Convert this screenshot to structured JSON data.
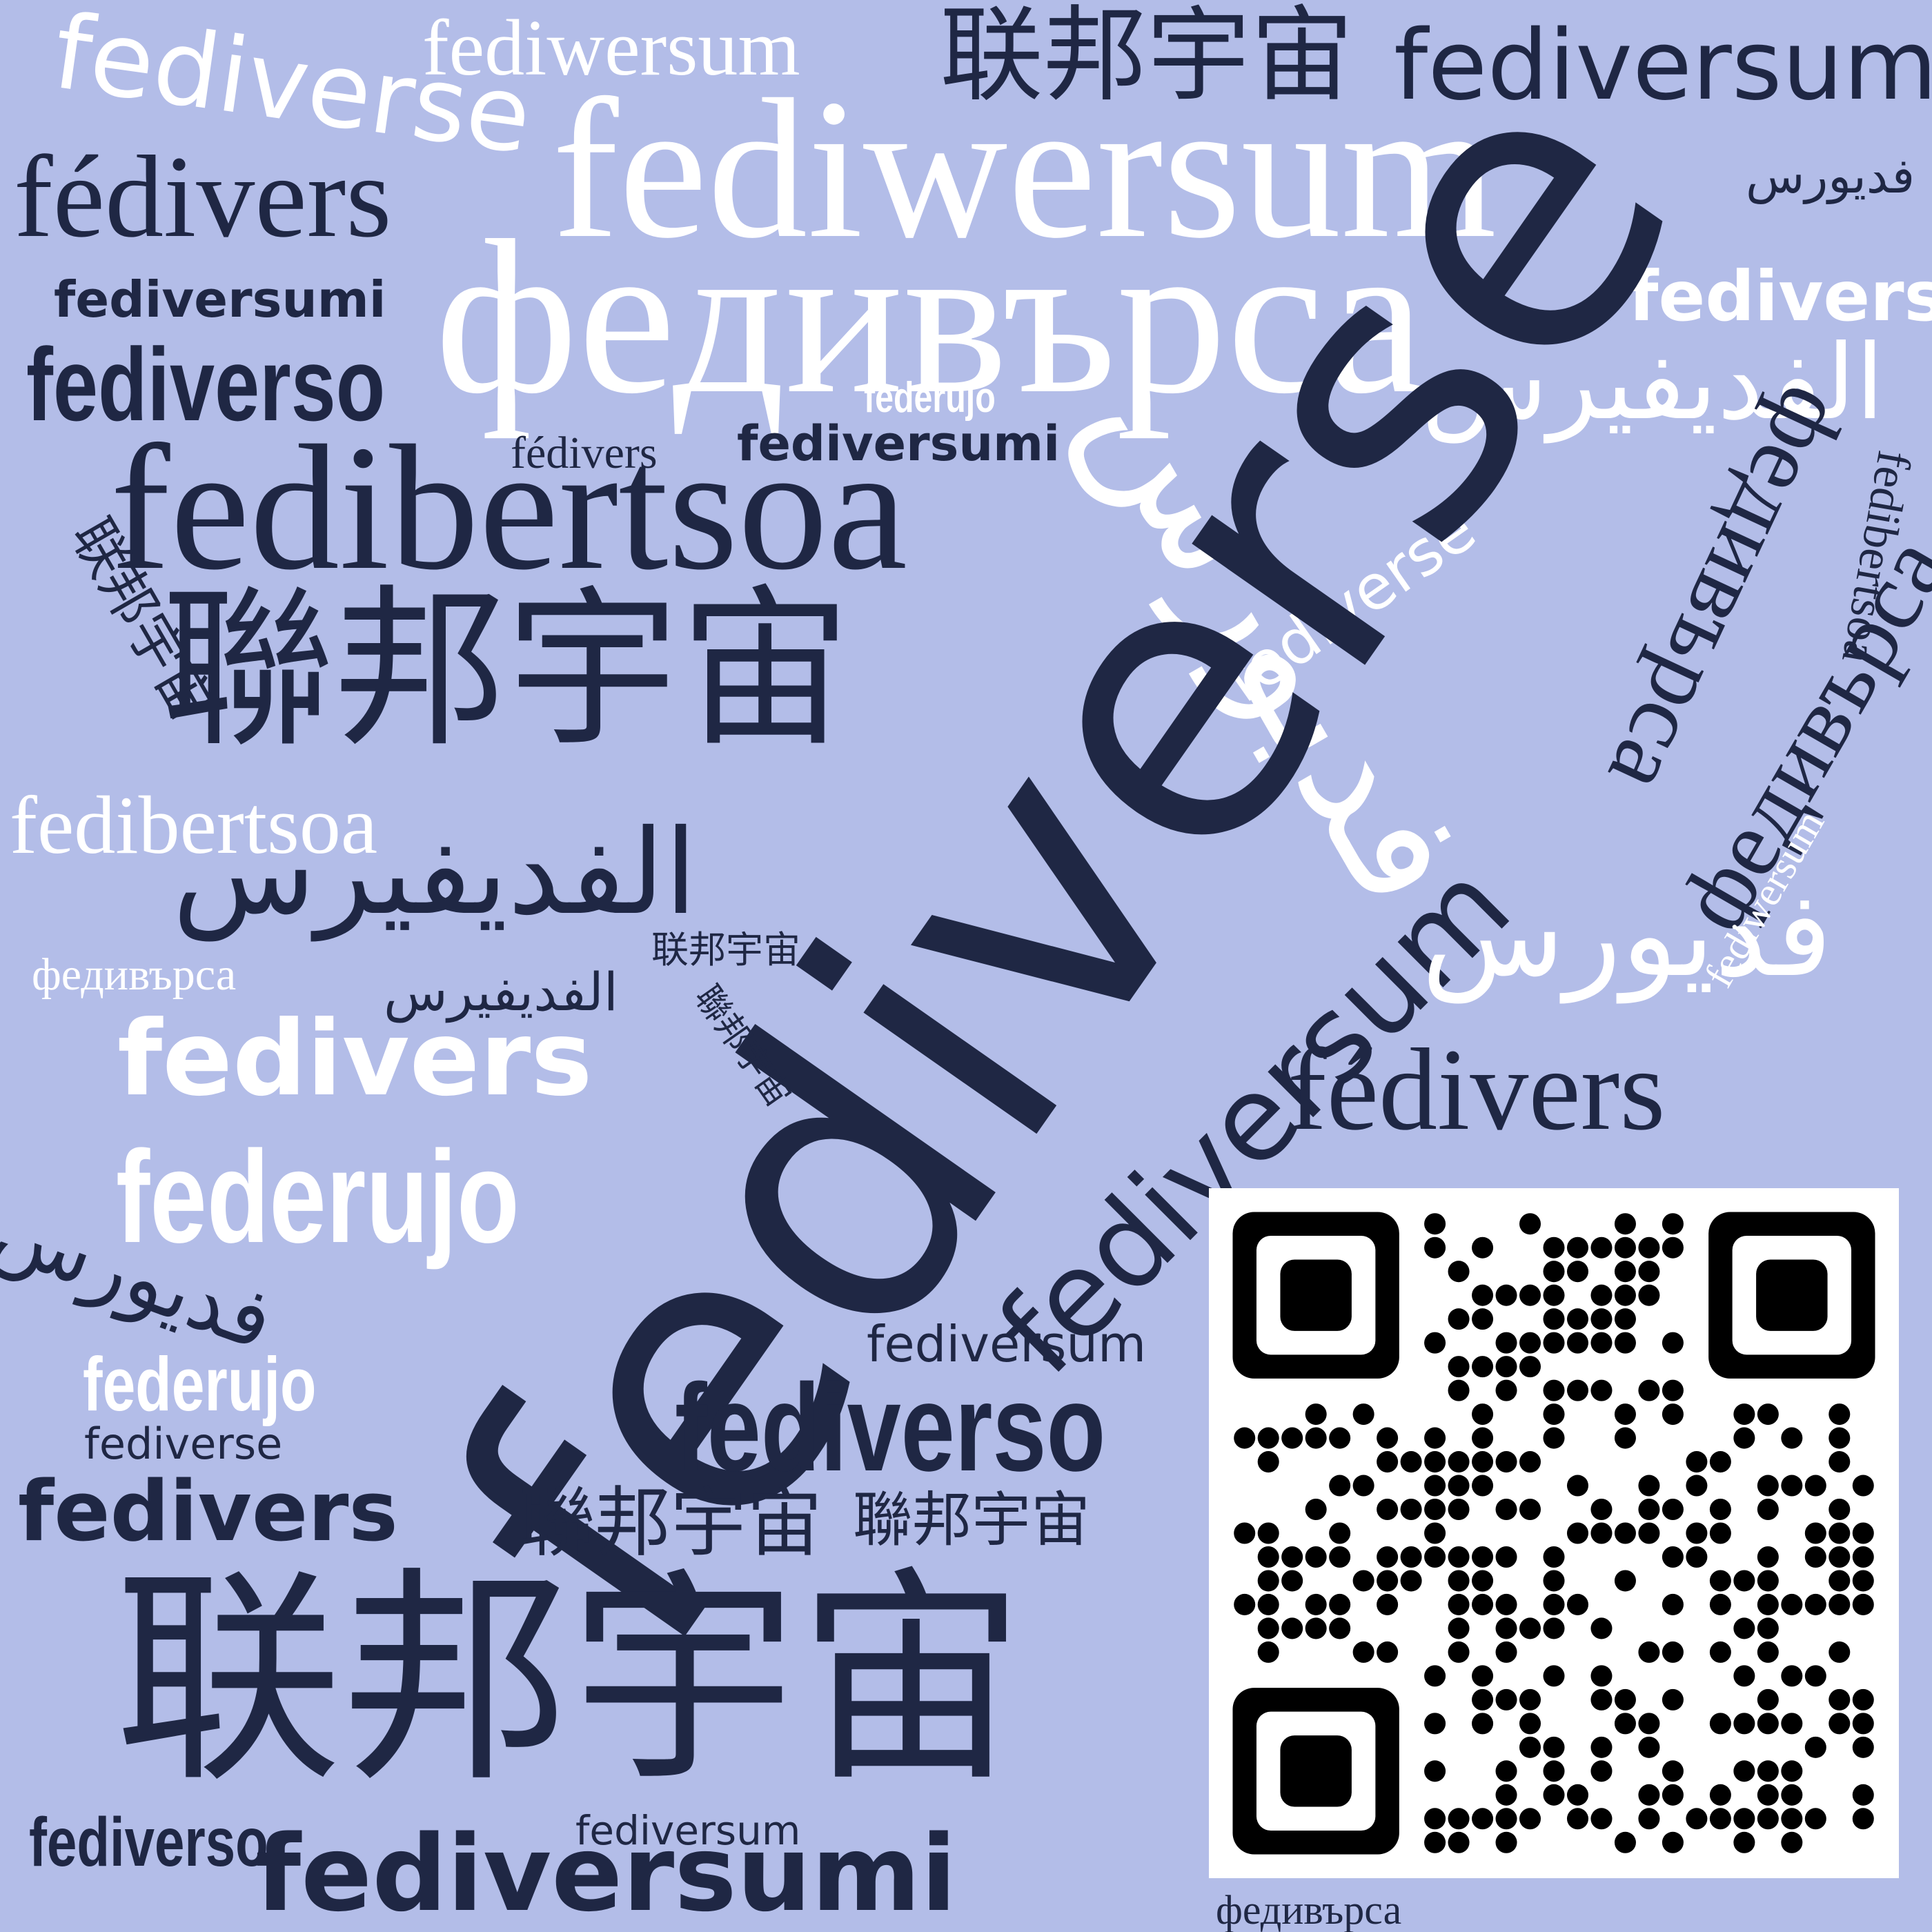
{
  "canvas": {
    "background": "#b3bde8",
    "dark_color": "#1f2744",
    "light_color": "#ffffff"
  },
  "words": {
    "w01": "fediwersum",
    "w02": "联邦宇宙",
    "w03": "fediversum",
    "w04": "fediverse",
    "w05": "fediwersum",
    "w06": "fédivers",
    "w07": "فديورس",
    "w08": "федивърса",
    "w09": "fediversumi",
    "w10": "fedivers",
    "w11": "fediverso",
    "w12": "الفديفيرس",
    "w13": "federujo",
    "w14": "fédivers",
    "w15": "fediversumi",
    "w16": "fedibertsoa",
    "w17": "فديورس",
    "w18": "федивърса",
    "w19": "fediverse",
    "w20": "fedibertsoa",
    "w21": "联邦宇宙",
    "w22": "聯邦宇宙",
    "w23": "fediverse",
    "w24": "fediversum",
    "w25": "федивърса",
    "w26": "fedibertsoa",
    "w27": "الفديفيرس",
    "w28": "fediwersum",
    "w29": "فديورس",
    "w30": "联邦宇宙",
    "w31": "федивърса",
    "w32": "الفديفيرس",
    "w33": "聯邦宇宙",
    "w34": "fedivers",
    "w35": "fédivers",
    "w36": "federujo",
    "w37": "فديورس",
    "w38": "fediversum",
    "w39": "federujo",
    "w40": "fediverso",
    "w41": "fediverse",
    "w42": "fedivers",
    "w43": "聯邦宇宙",
    "w44": "聯邦宇宙",
    "w45": "联邦宇宙",
    "w46": "fediverso",
    "w47": "fediversum",
    "w48": "fediversumi",
    "w49": "федивърса"
  },
  "qr_code": {
    "label": "QR code"
  }
}
